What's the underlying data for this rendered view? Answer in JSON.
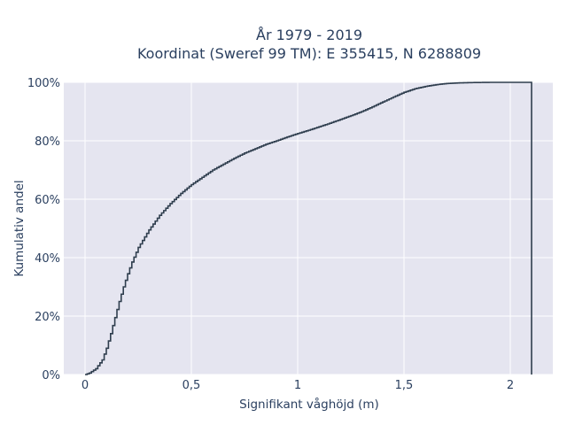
{
  "chart_data": {
    "type": "line",
    "subtype": "ecdf-step",
    "title_line1": "År 1979 - 2019",
    "title_line2": "Koordinat (Sweref 99 TM): E 355415, N 6288809",
    "xlabel": "Signifikant våghöjd (m)",
    "ylabel": "Kumulativ andel",
    "xlim": [
      -0.1,
      2.2
    ],
    "ylim": [
      0,
      100
    ],
    "x_ticks": [
      0,
      0.5,
      1,
      1.5,
      2
    ],
    "x_tick_labels": [
      "0",
      "0,5",
      "1",
      "1,5",
      "2"
    ],
    "y_ticks": [
      0,
      20,
      40,
      60,
      80,
      100
    ],
    "y_tick_labels": [
      "0%",
      "20%",
      "40%",
      "60%",
      "80%",
      "100%"
    ],
    "grid": true,
    "colors": {
      "line": "#2f3e4e",
      "plot_bg": "#e5e5f0",
      "grid": "#ffffff",
      "text": "#2a3f5f"
    },
    "series": [
      {
        "x": [
          0.0,
          0.02,
          0.05,
          0.08,
          0.1,
          0.12,
          0.14,
          0.16,
          0.18,
          0.2,
          0.22,
          0.25,
          0.3,
          0.35,
          0.4,
          0.45,
          0.5,
          0.55,
          0.6,
          0.65,
          0.7,
          0.75,
          0.8,
          0.85,
          0.9,
          0.95,
          1.0,
          1.05,
          1.1,
          1.15,
          1.2,
          1.25,
          1.3,
          1.35,
          1.4,
          1.45,
          1.5,
          1.55,
          1.6,
          1.65,
          1.7,
          1.75,
          1.8,
          1.9,
          2.0,
          2.1
        ],
        "y": [
          0,
          0.5,
          2,
          5,
          9,
          14,
          19.5,
          25,
          30,
          34.5,
          38.5,
          43.5,
          49.5,
          54.5,
          58.5,
          62,
          65,
          67.5,
          70,
          72,
          74,
          75.8,
          77.3,
          78.8,
          80,
          81.3,
          82.5,
          83.6,
          84.8,
          86,
          87.3,
          88.6,
          90,
          91.6,
          93.3,
          95,
          96.6,
          97.8,
          98.6,
          99.2,
          99.6,
          99.8,
          99.9,
          100,
          100,
          100
        ]
      }
    ]
  }
}
